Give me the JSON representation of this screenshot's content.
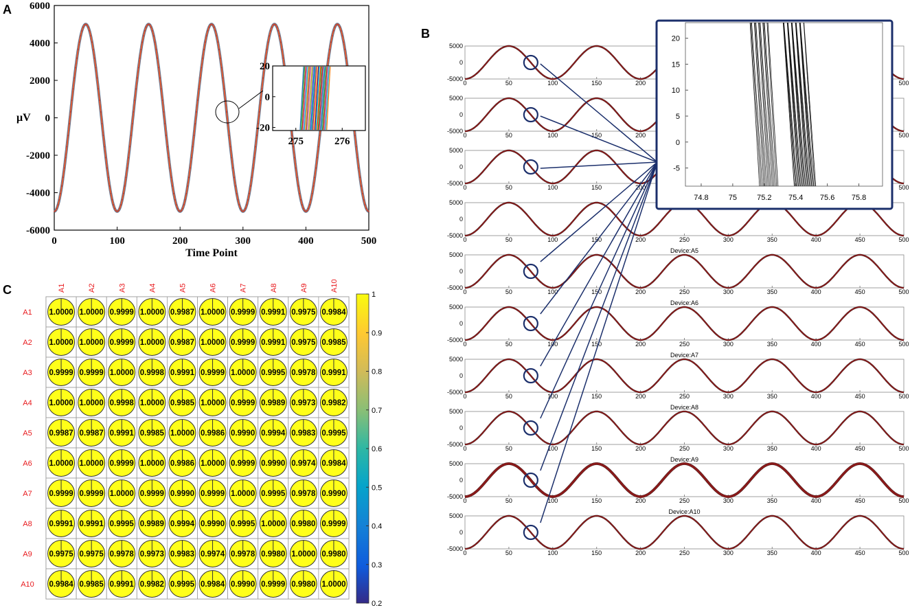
{
  "chart_data": [
    {
      "panel": "A",
      "type": "line",
      "description_label": "A",
      "xlabel": "Time Point",
      "ylabel": "μV",
      "xlim": [
        0,
        500
      ],
      "ylim": [
        -6000,
        6000
      ],
      "xticks": [
        0,
        100,
        200,
        300,
        400,
        500
      ],
      "yticks": [
        -6000,
        -4000,
        -2000,
        0,
        2000,
        4000,
        6000
      ],
      "signal": {
        "amplitude": 5000,
        "period": 100,
        "phase_peak_at": 50
      },
      "inset": {
        "xlim": [
          274.5,
          276.5
        ],
        "ylim": [
          -22,
          20
        ],
        "xticks": [
          275,
          276
        ],
        "yticks": [
          -20,
          0,
          20
        ]
      }
    },
    {
      "panel": "B",
      "type": "line",
      "description_label": "B",
      "xlim": [
        0,
        500
      ],
      "ylim": [
        -5000,
        5000
      ],
      "xticks": [
        0,
        50,
        100,
        150,
        200,
        250,
        300,
        350,
        400,
        450,
        500
      ],
      "yticks": [
        5000,
        0,
        -5000
      ],
      "signal": {
        "amplitude": 5000,
        "period": 100
      },
      "devices": [
        "",
        "",
        "",
        "",
        "Device:A5",
        "Device:A6",
        "Device:A7",
        "Device:A8",
        "Device:A9",
        "Device:A10"
      ],
      "inset": {
        "xlim": [
          74.7,
          75.95
        ],
        "ylim": [
          -8.5,
          23
        ],
        "xticks": [
          74.8,
          75,
          75.2,
          75.4,
          75.6,
          75.8
        ],
        "yticks": [
          20,
          15,
          10,
          5,
          0,
          -5
        ]
      }
    },
    {
      "panel": "C",
      "type": "heatmap",
      "description_label": "C",
      "labels": [
        "A1",
        "A2",
        "A3",
        "A4",
        "A5",
        "A6",
        "A7",
        "A8",
        "A9",
        "A10"
      ],
      "matrix": [
        [
          "1.0000",
          "1.0000",
          "0.9999",
          "1.0000",
          "0.9987",
          "1.0000",
          "0.9999",
          "0.9991",
          "0.9975",
          "0.9984"
        ],
        [
          "1.0000",
          "1.0000",
          "0.9999",
          "1.0000",
          "0.9987",
          "1.0000",
          "0.9999",
          "0.9991",
          "0.9975",
          "0.9985"
        ],
        [
          "0.9999",
          "0.9999",
          "1.0000",
          "0.9998",
          "0.9991",
          "0.9999",
          "1.0000",
          "0.9995",
          "0.9978",
          "0.9991"
        ],
        [
          "1.0000",
          "1.0000",
          "0.9998",
          "1.0000",
          "0.9985",
          "1.0000",
          "0.9999",
          "0.9989",
          "0.9973",
          "0.9982"
        ],
        [
          "0.9987",
          "0.9987",
          "0.9991",
          "0.9985",
          "1.0000",
          "0.9986",
          "0.9990",
          "0.9994",
          "0.9983",
          "0.9995"
        ],
        [
          "1.0000",
          "1.0000",
          "0.9999",
          "1.0000",
          "0.9986",
          "1.0000",
          "0.9999",
          "0.9990",
          "0.9974",
          "0.9984"
        ],
        [
          "0.9999",
          "0.9999",
          "1.0000",
          "0.9999",
          "0.9990",
          "0.9999",
          "1.0000",
          "0.9995",
          "0.9978",
          "0.9990"
        ],
        [
          "0.9991",
          "0.9991",
          "0.9995",
          "0.9989",
          "0.9994",
          "0.9990",
          "0.9995",
          "1.0000",
          "0.9980",
          "0.9999"
        ],
        [
          "0.9975",
          "0.9975",
          "0.9978",
          "0.9973",
          "0.9983",
          "0.9974",
          "0.9978",
          "0.9980",
          "1.0000",
          "0.9980"
        ],
        [
          "0.9984",
          "0.9985",
          "0.9991",
          "0.9982",
          "0.9995",
          "0.9984",
          "0.9990",
          "0.9999",
          "0.9980",
          "1.0000"
        ]
      ],
      "colorbar": {
        "min": 0.2,
        "max": 1,
        "ticks": [
          "1",
          "0.9",
          "0.8",
          "0.7",
          "0.6",
          "0.5",
          "0.4",
          "0.3",
          "0.2"
        ]
      }
    }
  ],
  "colors": {
    "signal_red": "#8b1a1a",
    "signal_orange": "#e8572b",
    "circle_navy": "#1b2f6b",
    "cell_yellow": "#ffff19",
    "label_red": "#e8191d"
  }
}
